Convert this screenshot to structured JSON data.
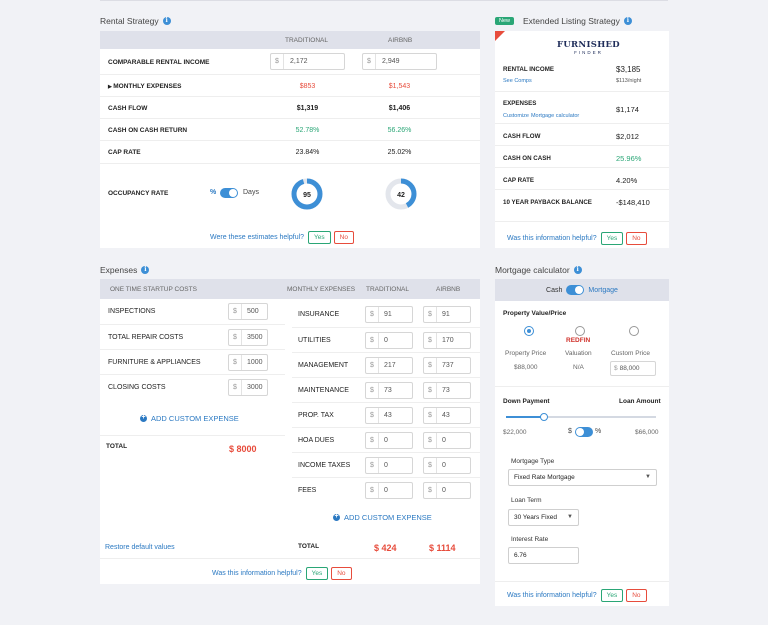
{
  "rental": {
    "title": "Rental Strategy",
    "col_traditional": "TRADITIONAL",
    "col_airbnb": "AIRBNB",
    "rows": {
      "income_label": "COMPARABLE RENTAL INCOME",
      "income_cur": "$",
      "income_trad": "2,172",
      "income_air": "2,949",
      "expenses_label": "MONTHLY EXPENSES",
      "expenses_trad": "$853",
      "expenses_air": "$1,543",
      "cashflow_label": "CASH FLOW",
      "cashflow_trad": "$1,319",
      "cashflow_air": "$1,406",
      "coc_label": "CASH ON CASH RETURN",
      "coc_trad": "52.78%",
      "coc_air": "56.26%",
      "cap_label": "CAP RATE",
      "cap_trad": "23.84%",
      "cap_air": "25.02%",
      "occ_label": "OCCUPANCY RATE",
      "occ_pct": "%",
      "occ_days": "Days",
      "occ_trad": "95",
      "occ_air": "42",
      "occ_trad_fraction": 0.95,
      "occ_air_fraction": 0.42
    },
    "helpful": "Were these estimates helpful?",
    "yes": "Yes",
    "no": "No"
  },
  "extended": {
    "badge": "New",
    "title": "Extended Listing Strategy",
    "logo_top": "FURNISHED",
    "logo_bottom": "FINDER",
    "income_label": "RENTAL INCOME",
    "income_value": "$3,185",
    "see_comps": "See Comps",
    "per_night": "$113/night",
    "expenses_label": "EXPENSES",
    "customize": "Customize",
    "mortgage_calc": "Mortgage calculator",
    "expenses_value": "$1,174",
    "cashflow_label": "CASH FLOW",
    "cashflow_value": "$2,012",
    "coc_label": "CASH ON CASH",
    "coc_value": "25.96%",
    "cap_label": "CAP RATE",
    "cap_value": "4.20%",
    "payback_label": "10 YEAR PAYBACK BALANCE",
    "payback_value": "-$148,410",
    "helpful": "Was this information helpful?",
    "yes": "Yes",
    "no": "No"
  },
  "expenses": {
    "title": "Expenses",
    "startup_header": "ONE TIME STARTUP COSTS",
    "monthly_header": "MONTHLY EXPENSES",
    "col_traditional": "TRADITIONAL",
    "col_airbnb": "AIRBNB",
    "cur": "$",
    "startup": [
      {
        "label": "INSPECTIONS",
        "value": "500"
      },
      {
        "label": "TOTAL REPAIR COSTS",
        "value": "3500"
      },
      {
        "label": "FURNITURE & APPLIANCES",
        "value": "1000"
      },
      {
        "label": "CLOSING COSTS",
        "value": "3000"
      }
    ],
    "add_custom_left": "ADD CUSTOM EXPENSE",
    "total_label": "TOTAL",
    "startup_total": "$ 8000",
    "restore": "Restore default values",
    "monthly": [
      {
        "label": "INSURANCE",
        "trad": "91",
        "air": "91"
      },
      {
        "label": "UTILITIES",
        "trad": "0",
        "air": "170"
      },
      {
        "label": "MANAGEMENT",
        "trad": "217",
        "air": "737"
      },
      {
        "label": "MAINTENANCE",
        "trad": "73",
        "air": "73"
      },
      {
        "label": "PROP. TAX",
        "trad": "43",
        "air": "43"
      },
      {
        "label": "HOA DUES",
        "trad": "0",
        "air": "0"
      },
      {
        "label": "INCOME TAXES",
        "trad": "0",
        "air": "0"
      },
      {
        "label": "FEES",
        "trad": "0",
        "air": "0"
      }
    ],
    "add_custom_right": "ADD CUSTOM EXPENSE",
    "monthly_total_label": "TOTAL",
    "monthly_total_trad": "$ 424",
    "monthly_total_air": "$ 1114",
    "helpful": "Was this information helpful?",
    "yes": "Yes",
    "no": "No"
  },
  "mortgage": {
    "title": "Mortgage calculator",
    "cash": "Cash",
    "mortgage": "Mortgage",
    "pv_title": "Property Value/Price",
    "redfin": "REDFIN",
    "opt1_label": "Property Price",
    "opt1_value": "$88,000",
    "opt2_label": "Valuation",
    "opt2_value": "N/A",
    "opt3_label": "Custom Price",
    "opt3_cur": "$",
    "opt3_value": "88,000",
    "down_label": "Down Payment",
    "loan_label": "Loan Amount",
    "down_value": "$22,000",
    "down_dollar": "$",
    "down_pct": "%",
    "loan_value": "$66,000",
    "down_fraction": 0.25,
    "type_label": "Mortgage Type",
    "type_value": "Fixed Rate Mortgage",
    "term_label": "Loan Term",
    "term_value": "30 Years Fixed",
    "rate_label": "Interest Rate",
    "rate_value": "6.76",
    "helpful": "Was this information helpful?",
    "yes": "Yes",
    "no": "No"
  },
  "colors": {
    "accent": "#3d8fd6",
    "red": "#e74c3c",
    "green": "#2aa676"
  }
}
